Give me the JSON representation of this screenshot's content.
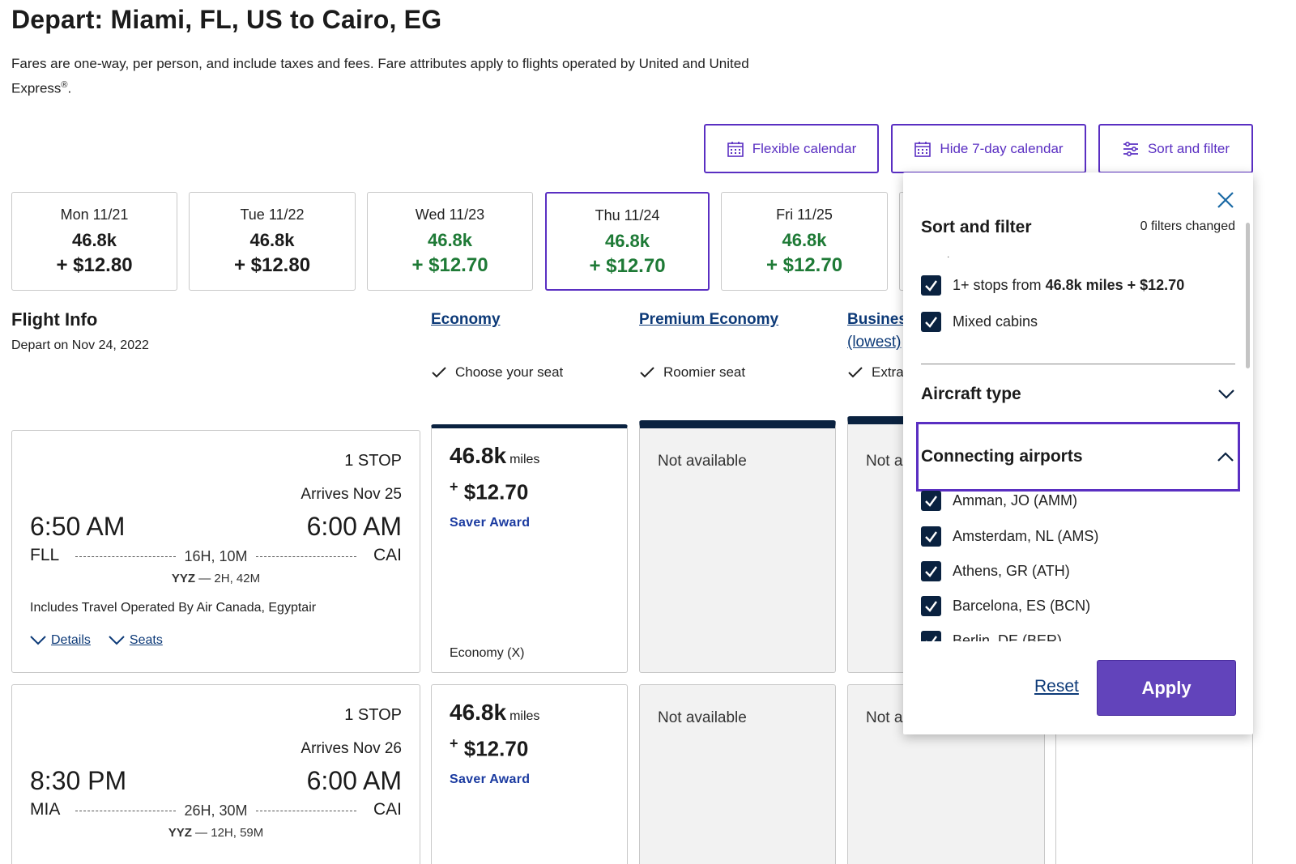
{
  "header": {
    "title": "Depart: Miami, FL, US to Cairo, EG",
    "disclaimer_line1": "Fares are one-way, per person, and include taxes and fees. Fare attributes apply to flights operated by United and United",
    "disclaimer_line2": "Express",
    "disclaimer_mark": "®",
    "disclaimer_end": "."
  },
  "toolbar": {
    "flexible_calendar": "Flexible calendar",
    "hide_calendar": "Hide 7-day calendar",
    "sort_filter": "Sort and filter"
  },
  "days": [
    {
      "day": "Mon 11/21",
      "miles": "46.8k",
      "cash": "+ $12.80"
    },
    {
      "day": "Tue 11/22",
      "miles": "46.8k",
      "cash": "+ $12.80"
    },
    {
      "day": "Wed 11/23",
      "miles": "46.8k",
      "cash": "+ $12.70"
    },
    {
      "day": "Thu 11/24",
      "miles": "46.8k",
      "cash": "+ $12.70"
    },
    {
      "day": "Fri 11/25",
      "miles": "46.8k",
      "cash": "+ $12.70"
    }
  ],
  "flight_info": {
    "title": "Flight Info",
    "subtitle": "Depart on Nov 24, 2022"
  },
  "cabins": {
    "economy": "Economy",
    "premium": "Premium Economy",
    "business": "Business",
    "business_sub": "(lowest)",
    "economy_feature": "Choose your seat",
    "premium_feature": "Roomier seat",
    "business_feature": "Extra"
  },
  "flights": [
    {
      "stops": "1 STOP",
      "arrives": "Arrives Nov 25",
      "dep_time": "6:50 AM",
      "arr_time": "6:00 AM",
      "dep_code": "FLL",
      "arr_code": "CAI",
      "duration": "16H, 10M",
      "conn_code": "YYZ",
      "conn_time": "2H, 42M",
      "operated": "Includes Travel Operated By Air Canada, Egyptair",
      "details": "Details",
      "seats": "Seats",
      "fare_miles": "46.8k",
      "fare_miles_unit": "miles",
      "fare_plus": "+",
      "fare_cash": "$12.70",
      "fare_award": "Saver Award",
      "fare_class": "Economy (X)",
      "premium": "Not available",
      "business": "Not a"
    },
    {
      "stops": "1 STOP",
      "arrives": "Arrives Nov 26",
      "dep_time": "8:30 PM",
      "arr_time": "6:00 AM",
      "dep_code": "MIA",
      "arr_code": "CAI",
      "duration": "26H, 30M",
      "conn_code": "YYZ",
      "conn_time": "12H, 59M",
      "fare_miles": "46.8k",
      "fare_miles_unit": "miles",
      "fare_plus": "+",
      "fare_cash": "$12.70",
      "fare_award": "Saver Award",
      "premium": "Not available",
      "business": "Not a"
    }
  ],
  "panel": {
    "title": "Sort and filter",
    "filters_changed": "0 filters changed",
    "dot": ".",
    "opt_stops_prefix": "1+ stops from ",
    "opt_stops_bold": "46.8k miles + $12.70",
    "opt_mixed": "Mixed cabins",
    "aircraft_type": "Aircraft type",
    "connecting_airports": "Connecting airports",
    "airports": [
      "Amman, JO (AMM)",
      "Amsterdam, NL (AMS)",
      "Athens, GR (ATH)",
      "Barcelona, ES (BCN)",
      "Berlin, DE (BER)"
    ],
    "reset": "Reset",
    "apply": "Apply"
  },
  "colors": {
    "accent": "#5a2fc2",
    "apply": "#6244bb",
    "navy": "#0a2240",
    "green": "#1e7a36",
    "link": "#0d3a78"
  }
}
